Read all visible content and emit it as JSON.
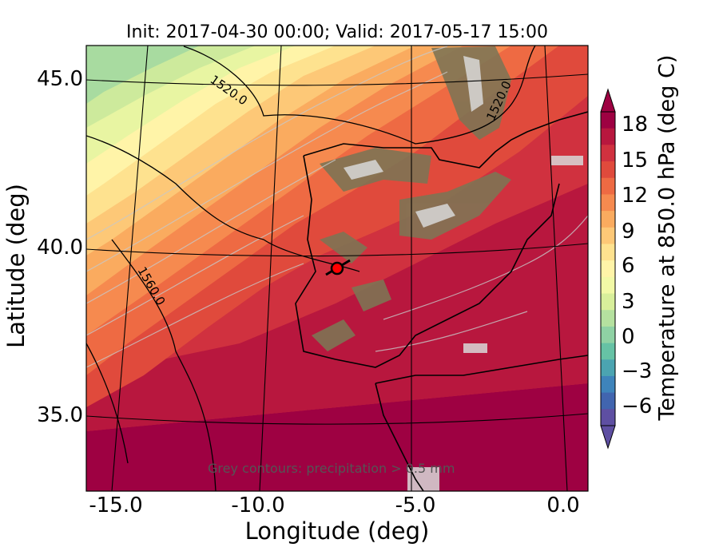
{
  "title": "Init: 2017-04-30 00:00; Valid: 2017-05-17 15:00",
  "axes": {
    "xlabel": "Longitude (deg)",
    "ylabel": "Latitude (deg)",
    "xticks": [
      "-15.0",
      "-10.0",
      "-5.0",
      "0.0"
    ],
    "yticks": [
      "45.0",
      "40.0",
      "35.0"
    ]
  },
  "colorbar": {
    "label": "Temperature at 850.0 hPa (deg C)",
    "ticks": [
      "18",
      "15",
      "12",
      "9",
      "6",
      "3",
      "0",
      "−3",
      "−6"
    ],
    "colors": [
      "#9e0142",
      "#b8173e",
      "#d0313f",
      "#e04a3c",
      "#ee6a43",
      "#f68a4f",
      "#faab5f",
      "#fdc877",
      "#fee28f",
      "#fff4a8",
      "#f2f9a6",
      "#d8ef9b",
      "#b5e19f",
      "#8fd2a4",
      "#66c2a5",
      "#4ba4b1",
      "#3e84bb",
      "#4165af",
      "#5e4fa2"
    ]
  },
  "contour_labels": [
    "1520.0",
    "1520.0",
    "1560.0"
  ],
  "footnote": "Grey contours: precipitation > 0.5 mm",
  "marker": {
    "label": "location-marker",
    "color": "#ff0000"
  }
}
